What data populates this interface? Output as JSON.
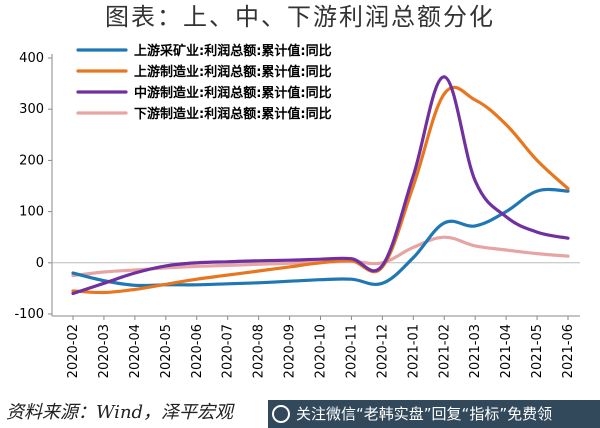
{
  "header": {
    "title": "图表：上、中、下游利润总额分化"
  },
  "footer": {
    "source": "资料来源：Wind，泽平宏观",
    "watermark": "关注微信“老韩实盘”回复“指标”免费领"
  },
  "chart_data": {
    "type": "line",
    "title": "图表：上、中、下游利润总额分化",
    "xlabel": "",
    "ylabel": "",
    "ylim": [
      -100,
      400
    ],
    "yticks": [
      -100,
      0,
      100,
      200,
      300,
      400
    ],
    "grid": false,
    "legend_position": "top-left",
    "categories": [
      "2020-02",
      "2020-03",
      "2020-04",
      "2020-05",
      "2020-06",
      "2020-07",
      "2020-08",
      "2020-09",
      "2020-10",
      "2020-11",
      "2020-12",
      "2021-01",
      "2021-02",
      "2021-03",
      "2021-04",
      "2021-05",
      "2021-06"
    ],
    "series": [
      {
        "name": "上游采矿业:利润总额:累计值:同比",
        "color": "#1f77b4",
        "values": [
          -20,
          -35,
          -44,
          -43,
          -43,
          -41,
          -39,
          -36,
          -33,
          -32,
          -40,
          10,
          78,
          72,
          100,
          140,
          140
        ]
      },
      {
        "name": "上游制造业:利润总额:累计值:同比",
        "color": "#e8761e",
        "values": [
          -55,
          -58,
          -52,
          -42,
          -32,
          -24,
          -16,
          -8,
          0,
          4,
          -8,
          150,
          330,
          318,
          270,
          200,
          145
        ]
      },
      {
        "name": "中游制造业:利润总额:累计值:同比",
        "color": "#7030a0",
        "values": [
          -60,
          -40,
          -20,
          -6,
          0,
          2,
          4,
          5,
          7,
          8,
          -5,
          170,
          363,
          160,
          90,
          60,
          48
        ]
      },
      {
        "name": "下游制造业:利润总额:累计值:同比",
        "color": "#e6a4a4",
        "values": [
          -25,
          -18,
          -14,
          -10,
          -7,
          -5,
          -3,
          -1,
          1,
          3,
          0,
          30,
          50,
          33,
          25,
          18,
          13
        ]
      }
    ]
  }
}
